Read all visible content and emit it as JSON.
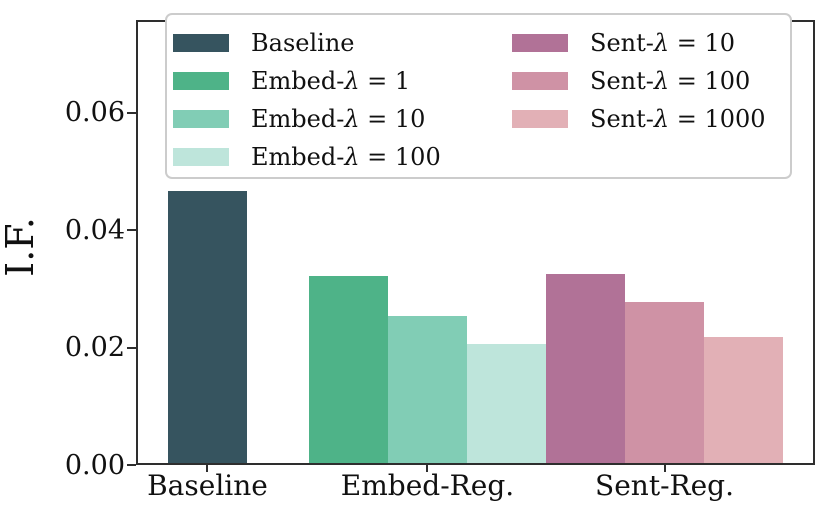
{
  "chart_data": {
    "type": "bar",
    "title": "",
    "xlabel": "",
    "ylabel": "I.F.",
    "ylim": [
      0,
      0.0758
    ],
    "grid": false,
    "yticks": [
      {
        "value": 0.0,
        "label": "0.00"
      },
      {
        "value": 0.02,
        "label": "0.02"
      },
      {
        "value": 0.04,
        "label": "0.04"
      },
      {
        "value": 0.06,
        "label": "0.06"
      }
    ],
    "categories": [
      "Baseline",
      "Embed-Reg.",
      "Sent-Reg."
    ],
    "groups": [
      {
        "category": "Baseline",
        "center_fraction": 0.1053,
        "bars": [
          {
            "label": "Baseline",
            "value": 0.0467,
            "color": "#36545F"
          }
        ]
      },
      {
        "category": "Embed-Reg.",
        "center_fraction": 0.4293,
        "bars": [
          {
            "label": "Embed-λ = 1",
            "value": 0.0322,
            "color": "#4EB388"
          },
          {
            "label": "Embed-λ = 10",
            "value": 0.0252,
            "color": "#81CDB5"
          },
          {
            "label": "Embed-λ = 100",
            "value": 0.0205,
            "color": "#BEE5DB"
          }
        ]
      },
      {
        "category": "Sent-Reg.",
        "center_fraction": 0.7784,
        "bars": [
          {
            "label": "Sent-λ = 10",
            "value": 0.0325,
            "color": "#B17297"
          },
          {
            "label": "Sent-λ = 100",
            "value": 0.0276,
            "color": "#CF92A5"
          },
          {
            "label": "Sent-λ = 1000",
            "value": 0.0216,
            "color": "#E2B0B6"
          }
        ]
      }
    ],
    "bar_width_fraction": 0.1163,
    "legend": {
      "position": "upper-left-inside",
      "column_split": 4,
      "entries": [
        {
          "label": "Baseline",
          "color": "#36545F"
        },
        {
          "label": "Embed-λ = 1",
          "color": "#4EB388"
        },
        {
          "label": "Embed-λ = 10",
          "color": "#81CDB5"
        },
        {
          "label": "Embed-λ = 100",
          "color": "#BEE5DB"
        },
        {
          "label": "Sent-λ = 10",
          "color": "#B17297"
        },
        {
          "label": "Sent-λ = 100",
          "color": "#CF92A5"
        },
        {
          "label": "Sent-λ = 1000",
          "color": "#E2B0B6"
        }
      ]
    }
  }
}
